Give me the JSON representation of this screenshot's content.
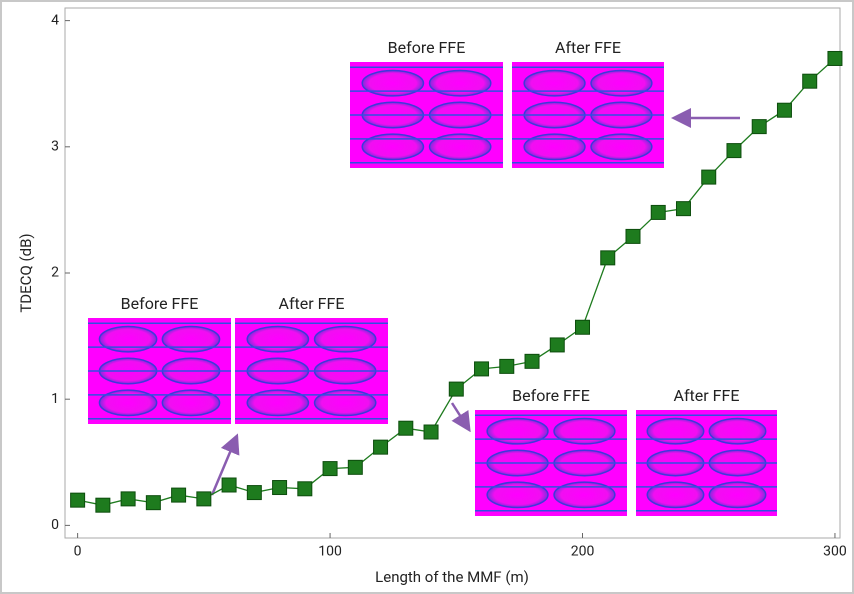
{
  "chart_data": {
    "type": "line",
    "x_label": "Length of the MMF (m)",
    "y_label": "TDECQ (dB)",
    "x": [
      0,
      10,
      20,
      30,
      40,
      50,
      60,
      70,
      80,
      90,
      100,
      110,
      120,
      130,
      140,
      150,
      160,
      170,
      180,
      190,
      200,
      210,
      220,
      230,
      240,
      250,
      260,
      270,
      280,
      290,
      300
    ],
    "series": [
      {
        "color": "#1e7b1e",
        "values": [
          0.2,
          0.16,
          0.21,
          0.18,
          0.24,
          0.21,
          0.32,
          0.26,
          0.3,
          0.29,
          0.45,
          0.46,
          0.62,
          0.77,
          0.74,
          1.08,
          1.24,
          1.26,
          1.3,
          1.43,
          1.57,
          2.12,
          2.29,
          2.48,
          2.51,
          2.76,
          2.97,
          3.16,
          3.29,
          3.52,
          3.7
        ]
      }
    ],
    "xlim": [
      -5,
      302
    ],
    "ylim": [
      -0.1,
      4.1
    ],
    "xticks": [
      0,
      100,
      200,
      300
    ],
    "yticks": [
      0,
      1,
      2,
      3,
      4
    ],
    "annotations": [
      "Before FFE",
      "After FFE",
      "Before FFE",
      "After FFE",
      "Before FFE",
      "After FFE"
    ]
  }
}
